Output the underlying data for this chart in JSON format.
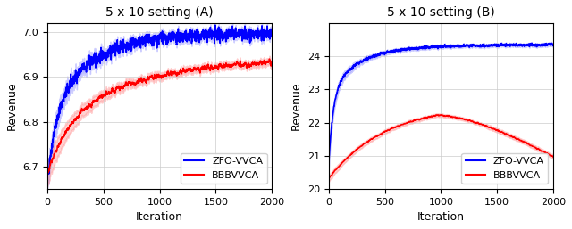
{
  "title_A": "5 x 10 setting (A)",
  "title_B": "5 x 10 setting (B)",
  "xlabel": "Iteration",
  "ylabel": "Revenue",
  "xlim": [
    0,
    2000
  ],
  "ylim_A": [
    6.65,
    7.02
  ],
  "ylim_B": [
    20.0,
    25.0
  ],
  "yticks_A": [
    6.7,
    6.8,
    6.9,
    7.0
  ],
  "yticks_B": [
    20,
    21,
    22,
    23,
    24
  ],
  "xticks": [
    0,
    500,
    1000,
    1500,
    2000
  ],
  "blue_color": "#0000FF",
  "red_color": "#FF0000",
  "blue_fill": "#8888FF",
  "red_fill": "#FF8888",
  "legend_labels": [
    "ZFO-VVCA",
    "BBBVVCA"
  ],
  "figsize": [
    6.4,
    2.57
  ],
  "dpi": 100
}
